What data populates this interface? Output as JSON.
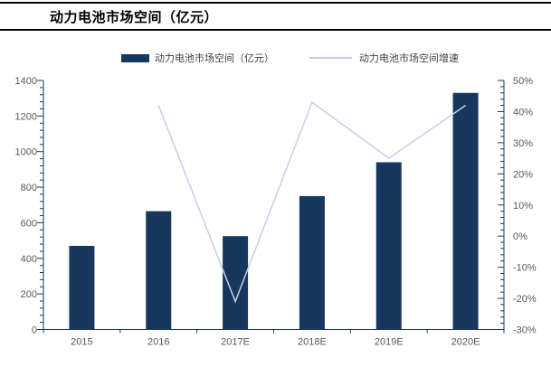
{
  "title": "动力电池市场空间（亿元）",
  "legend": {
    "bar": {
      "label": "动力电池市场空间（亿元）"
    },
    "line": {
      "label": "动力电池市场空间增速"
    }
  },
  "colors": {
    "bar": "#17375E",
    "line": "#C8CCEC",
    "axis": "#17375E",
    "axis_label": "#595959",
    "rule": "#000000"
  },
  "chart_data": {
    "type": "bar",
    "subtype": "combo-bar-line",
    "title": "动力电池市场空间（亿元）",
    "categories": [
      "2015",
      "2016",
      "2017E",
      "2018E",
      "2019E",
      "2020E"
    ],
    "series": [
      {
        "name": "动力电池市场空间（亿元）",
        "type": "bar",
        "axis": "left",
        "values": [
          470,
          665,
          525,
          750,
          940,
          1330
        ]
      },
      {
        "name": "动力电池市场空间增速",
        "type": "line",
        "axis": "right",
        "unit": "%",
        "values": [
          null,
          42,
          -21,
          43,
          25,
          42
        ]
      }
    ],
    "left_axis": {
      "min": 0,
      "max": 1400,
      "major_step": 200,
      "minor_step": 40,
      "labels": [
        "0",
        "200",
        "400",
        "600",
        "800",
        "1000",
        "1200",
        "1400"
      ]
    },
    "right_axis": {
      "min": -30,
      "max": 50,
      "major_step": 10,
      "minor_step": 2,
      "labels": [
        "50%",
        "40%",
        "30%",
        "20%",
        "10%",
        "0%",
        "-10%",
        "-20%",
        "-30%"
      ]
    },
    "legend_position": "top",
    "grid": false
  }
}
